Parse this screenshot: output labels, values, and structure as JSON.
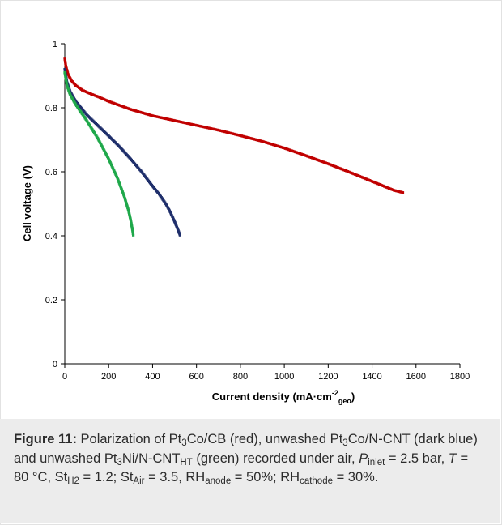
{
  "chart_data": {
    "type": "scatter",
    "title": "",
    "xlabel": "Current density (mA·cm",
    "xlabel_sup": "-2",
    "xlabel_sub": "geo",
    "xlabel_close": ")",
    "ylabel": "Cell voltage (V)",
    "xlim": [
      0,
      1800
    ],
    "ylim": [
      0,
      1
    ],
    "x_ticks": [
      "0",
      "200",
      "400",
      "600",
      "800",
      "1000",
      "1200",
      "1400",
      "1600",
      "1800"
    ],
    "y_ticks": [
      "0",
      "0.2",
      "0.4",
      "0.6",
      "0.8",
      "1"
    ],
    "grid": false,
    "legend": "none",
    "series": [
      {
        "color": "#c00000",
        "points": [
          [
            0,
            0.955
          ],
          [
            5,
            0.93
          ],
          [
            15,
            0.905
          ],
          [
            30,
            0.885
          ],
          [
            50,
            0.87
          ],
          [
            80,
            0.855
          ],
          [
            120,
            0.843
          ],
          [
            150,
            0.835
          ],
          [
            200,
            0.82
          ],
          [
            300,
            0.795
          ],
          [
            400,
            0.775
          ],
          [
            500,
            0.76
          ],
          [
            600,
            0.745
          ],
          [
            700,
            0.73
          ],
          [
            800,
            0.713
          ],
          [
            900,
            0.695
          ],
          [
            1000,
            0.674
          ],
          [
            1100,
            0.65
          ],
          [
            1200,
            0.625
          ],
          [
            1300,
            0.598
          ],
          [
            1400,
            0.57
          ],
          [
            1500,
            0.542
          ],
          [
            1540,
            0.535
          ]
        ]
      },
      {
        "color": "#1f2f6b",
        "points": [
          [
            0,
            0.92
          ],
          [
            10,
            0.88
          ],
          [
            25,
            0.85
          ],
          [
            50,
            0.82
          ],
          [
            80,
            0.795
          ],
          [
            100,
            0.778
          ],
          [
            150,
            0.745
          ],
          [
            200,
            0.712
          ],
          [
            250,
            0.678
          ],
          [
            300,
            0.64
          ],
          [
            350,
            0.6
          ],
          [
            400,
            0.555
          ],
          [
            430,
            0.53
          ],
          [
            460,
            0.5
          ],
          [
            480,
            0.475
          ],
          [
            500,
            0.445
          ],
          [
            515,
            0.42
          ],
          [
            525,
            0.402
          ]
        ]
      },
      {
        "color": "#1fa84a",
        "points": [
          [
            0,
            0.91
          ],
          [
            10,
            0.87
          ],
          [
            25,
            0.84
          ],
          [
            50,
            0.81
          ],
          [
            75,
            0.785
          ],
          [
            100,
            0.76
          ],
          [
            150,
            0.705
          ],
          [
            200,
            0.64
          ],
          [
            240,
            0.58
          ],
          [
            270,
            0.525
          ],
          [
            290,
            0.48
          ],
          [
            300,
            0.45
          ],
          [
            308,
            0.42
          ],
          [
            312,
            0.402
          ]
        ]
      }
    ]
  },
  "caption": {
    "label": "Figure 11:",
    "t1": " Polarization of Pt",
    "s1": "3",
    "t2": "Co/CB (red), unwashed Pt",
    "s2": "3",
    "t3": "Co/N-CNT (dark blue) and unwashed Pt",
    "s3": "3",
    "t4": "Ni/N-CNT",
    "s4": "HT",
    "t5": " (green) recorded under air, ",
    "p_letter": "P",
    "s5": "inlet",
    "t6": " = 2.5 bar, ",
    "t_letter": "T",
    "t7": " = 80 °C, St",
    "s6": "H2",
    "t8": " = 1.2; St",
    "s7": "Air",
    "t9": " = 3.5, RH",
    "s8": "anode",
    "t10": " = 50%; RH",
    "s9": "cathode",
    "t11": " = 30%."
  }
}
